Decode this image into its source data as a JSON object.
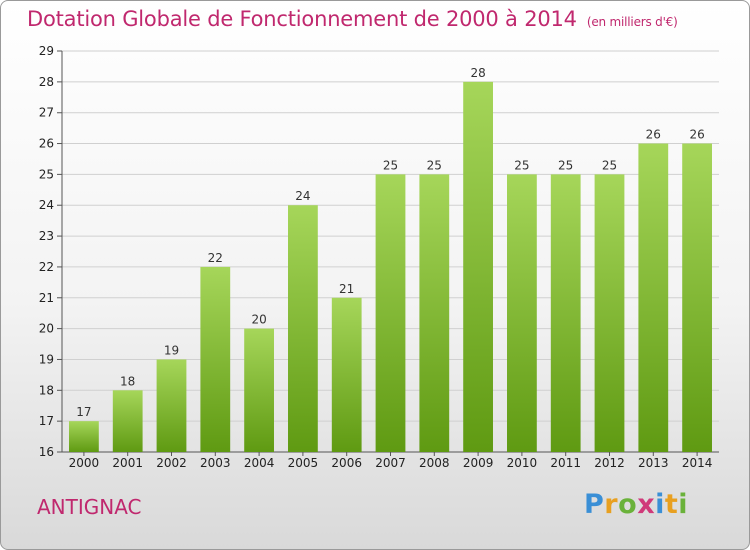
{
  "header": {
    "title": "Dotation Globale de Fonctionnement de 2000 à 2014",
    "unit": "(en milliers d'€)"
  },
  "footer": {
    "city": "ANTIGNAC",
    "logo": {
      "letters": [
        "P",
        "r",
        "o",
        "x",
        "i",
        "t",
        "i"
      ],
      "colors": [
        "#3a8fd6",
        "#e8a020",
        "#6ab23a",
        "#d03a7a",
        "#3a8fd6",
        "#e8a020",
        "#6ab23a"
      ]
    }
  },
  "colors": {
    "bar_light": "#a6d65a",
    "bar_dark": "#5f9a12",
    "title": "#c0286e"
  },
  "chart_data": {
    "type": "bar",
    "title": "Dotation Globale de Fonctionnement de 2000 à 2014",
    "subtitle": "(en milliers d'€)",
    "categories": [
      "2000",
      "2001",
      "2002",
      "2003",
      "2004",
      "2005",
      "2006",
      "2007",
      "2008",
      "2009",
      "2010",
      "2011",
      "2012",
      "2013",
      "2014"
    ],
    "values": [
      17,
      18,
      19,
      22,
      20,
      24,
      21,
      25,
      25,
      28,
      25,
      25,
      25,
      26,
      26
    ],
    "ylim": [
      16,
      29
    ],
    "yticks": [
      16,
      17,
      18,
      19,
      20,
      21,
      22,
      23,
      24,
      25,
      26,
      27,
      28,
      29
    ],
    "grid": true,
    "legend": "none"
  }
}
